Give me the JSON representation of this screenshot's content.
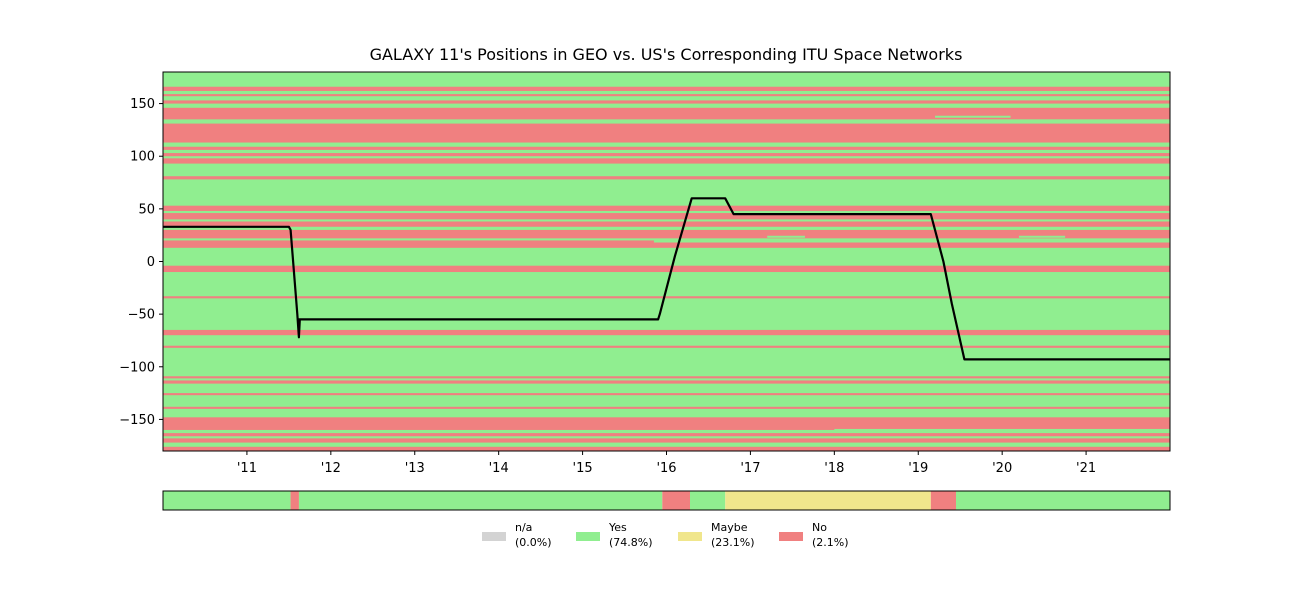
{
  "chart_data": {
    "type": "line",
    "title": "GALAXY 11's Positions in GEO vs. US's Corresponding ITU Space Networks",
    "xlabel": "",
    "ylabel": "",
    "xlim": [
      2010.0,
      2022.0
    ],
    "ylim": [
      -180,
      180
    ],
    "x_ticks": [
      2011,
      2012,
      2013,
      2014,
      2015,
      2016,
      2017,
      2018,
      2019,
      2020,
      2021
    ],
    "x_tick_labels": [
      "'11",
      "'12",
      "'13",
      "'14",
      "'15",
      "'16",
      "'17",
      "'18",
      "'19",
      "'20",
      "'21"
    ],
    "y_ticks": [
      150,
      100,
      50,
      0,
      -50,
      -100,
      -150
    ],
    "y_tick_labels": [
      "150",
      "100",
      "50",
      "0",
      "−50",
      "−100",
      "−150"
    ],
    "colors": {
      "yes": "#90ee90",
      "no": "#f08080",
      "maybe": "#f0e68c",
      "na": "#d3d3d3",
      "line": "#000000"
    },
    "background_bands": {
      "no": [
        [
          -180,
          -176
        ],
        [
          -172,
          -168
        ],
        [
          -166,
          -163
        ],
        [
          -160,
          -148
        ],
        [
          -140,
          -138
        ],
        [
          -127,
          -125
        ],
        [
          -116,
          -113
        ],
        [
          -111,
          -109
        ],
        [
          -82,
          -80
        ],
        [
          -70,
          -65
        ],
        [
          -35,
          -33
        ],
        [
          -10,
          -4
        ],
        [
          13,
          20
        ],
        [
          22,
          30
        ],
        [
          33,
          38
        ],
        [
          40,
          46
        ],
        [
          48,
          53
        ],
        [
          78,
          81
        ],
        [
          93,
          98
        ],
        [
          100,
          103
        ],
        [
          106,
          109
        ],
        [
          113,
          131
        ],
        [
          135,
          146
        ],
        [
          150,
          153
        ],
        [
          157,
          159
        ],
        [
          162,
          166
        ]
      ],
      "yes_segments": [
        {
          "y": 133.5,
          "x": [
            2016.4,
            2016.65
          ]
        },
        {
          "y": 137.5,
          "x": [
            2019.2,
            2020.1
          ]
        },
        {
          "y": 134.0,
          "x": [
            2019.2,
            2022.0
          ]
        },
        {
          "y": 23.5,
          "x": [
            2017.2,
            2017.65
          ]
        },
        {
          "y": 23.5,
          "x": [
            2020.2,
            2020.75
          ]
        },
        {
          "y": 19.0,
          "x": [
            2015.85,
            2022.0
          ]
        },
        {
          "y": -160.0,
          "x": [
            2018.0,
            2022.0
          ]
        }
      ]
    },
    "series": [
      {
        "x": [
          2010.0,
          2011.5,
          2011.52,
          2011.6,
          2011.62,
          2011.63,
          2011.62,
          2011.7,
          2015.9,
          2015.92,
          2016.1,
          2016.3,
          2016.7,
          2016.8,
          2019.15,
          2019.3,
          2019.4,
          2019.55,
          2022.0
        ],
        "y": [
          33,
          33,
          30,
          -50,
          -72,
          -55,
          -55,
          -55,
          -55,
          -50,
          5,
          60,
          60,
          45,
          45,
          0,
          -40,
          -93,
          -93
        ]
      }
    ],
    "status_strip": {
      "segments": [
        {
          "start": 2010.0,
          "end": 2011.52,
          "status": "yes"
        },
        {
          "start": 2011.52,
          "end": 2011.62,
          "status": "no"
        },
        {
          "start": 2011.62,
          "end": 2015.95,
          "status": "yes"
        },
        {
          "start": 2015.95,
          "end": 2016.28,
          "status": "no"
        },
        {
          "start": 2016.28,
          "end": 2016.7,
          "status": "yes"
        },
        {
          "start": 2016.7,
          "end": 2019.15,
          "status": "maybe"
        },
        {
          "start": 2019.15,
          "end": 2019.45,
          "status": "no"
        },
        {
          "start": 2019.45,
          "end": 2022.0,
          "status": "yes"
        }
      ]
    },
    "legend": {
      "placement": "bottom-center",
      "entries": [
        {
          "key": "na",
          "name": "n/a",
          "pct": "(0.0%)"
        },
        {
          "key": "yes",
          "name": "Yes",
          "pct": "(74.8%)"
        },
        {
          "key": "maybe",
          "name": "Maybe",
          "pct": "(23.1%)"
        },
        {
          "key": "no",
          "name": "No",
          "pct": "(2.1%)"
        }
      ]
    }
  }
}
